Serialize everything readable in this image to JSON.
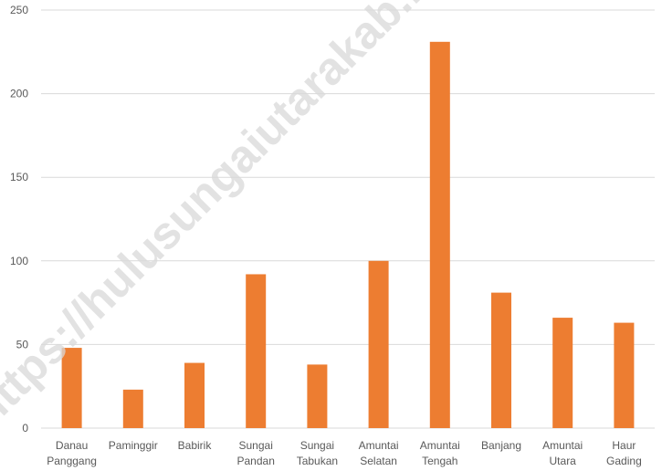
{
  "chart_data": {
    "type": "bar",
    "title": "",
    "xlabel": "",
    "ylabel": "",
    "categories": [
      [
        "Danau",
        "Panggang"
      ],
      [
        "Paminggir"
      ],
      [
        "Babirik"
      ],
      [
        "Sungai",
        "Pandan"
      ],
      [
        "Sungai",
        "Tabukan"
      ],
      [
        "Amuntai",
        "Selatan"
      ],
      [
        "Amuntai",
        "Tengah"
      ],
      [
        "Banjang"
      ],
      [
        "Amuntai",
        "Utara"
      ],
      [
        "Haur",
        "Gading"
      ]
    ],
    "values": [
      48,
      23,
      39,
      92,
      38,
      100,
      231,
      81,
      66,
      63
    ],
    "ylim": [
      0,
      250
    ],
    "yticks": [
      0,
      50,
      100,
      150,
      200,
      250
    ],
    "grid": true,
    "legend": "none",
    "bar_color": "#ED7D31",
    "grid_color": "#D9D9D9"
  },
  "watermark": "https://hulusungaiutarakab.bps.go.id"
}
